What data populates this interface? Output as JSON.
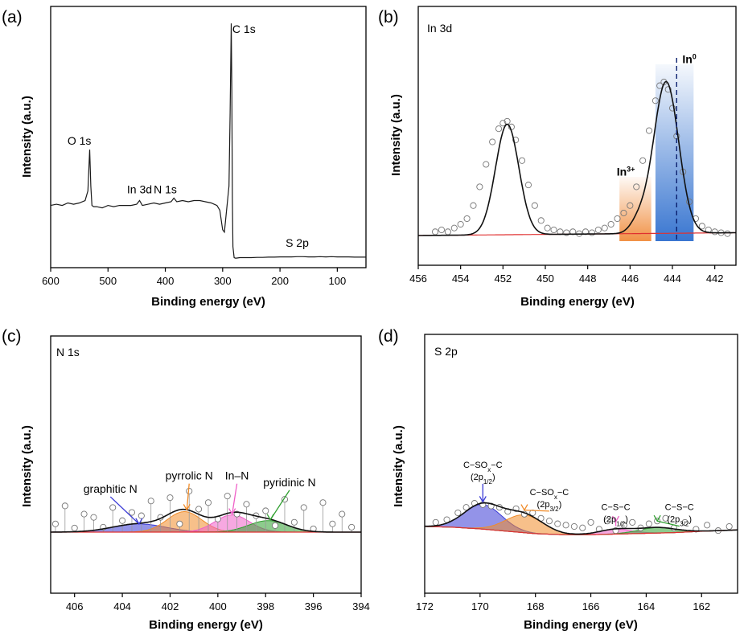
{
  "chart_data": [
    {
      "panel": "(a)",
      "type": "line",
      "title": "",
      "xlabel": "Binding energy (eV)",
      "ylabel": "Intensity (a.u.)",
      "xlim": [
        600,
        50
      ],
      "ylim": [
        0,
        100
      ],
      "x_reversed": true,
      "xticks": [
        600,
        500,
        400,
        300,
        200,
        100
      ],
      "yticks_shown": false,
      "series": [
        {
          "x": [
            600,
            590,
            580,
            570,
            560,
            550,
            540,
            535,
            532,
            530,
            528,
            525,
            520,
            510,
            500,
            490,
            480,
            470,
            460,
            450,
            445,
            440,
            430,
            420,
            410,
            400,
            390,
            385,
            380,
            370,
            360,
            350,
            340,
            330,
            320,
            310,
            305,
            300,
            297,
            294,
            291,
            289,
            287,
            285,
            284,
            283,
            282,
            280,
            278,
            276,
            270,
            260,
            250,
            240,
            230,
            220,
            210,
            200,
            190,
            180,
            170,
            160,
            150,
            140,
            130,
            120,
            110,
            100,
            90,
            80,
            70,
            60,
            50
          ],
          "y": [
            22,
            22.5,
            22,
            23,
            22.5,
            23,
            24,
            28,
            45,
            30,
            22,
            21.5,
            21.5,
            21,
            22,
            21.5,
            22,
            22,
            22,
            22.5,
            24,
            22,
            22.5,
            23,
            22.5,
            23,
            23.5,
            25,
            23.5,
            24,
            23.5,
            24,
            24,
            23.5,
            23,
            22,
            20,
            12,
            11,
            18,
            25,
            30,
            60,
            97,
            70,
            25,
            5,
            0.5,
            0.3,
            0.3,
            0.5,
            0.5,
            0.5,
            0.6,
            0.6,
            0.7,
            0.7,
            0.8,
            0.8,
            0.8,
            0.9,
            0.9,
            0.8,
            0.8,
            0.9,
            0.8,
            0.9,
            0.8,
            0.8,
            0.8,
            0.7,
            0.7,
            0.7
          ]
        }
      ],
      "annotations": [
        {
          "text": "C 1s",
          "x": 283,
          "y": 93
        },
        {
          "text": "O 1s",
          "x": 550,
          "y": 47
        },
        {
          "text": "In 3d",
          "x": 445,
          "y": 27
        },
        {
          "text": "N 1s",
          "x": 400,
          "y": 27
        },
        {
          "text": "S 2p",
          "x": 170,
          "y": 5
        }
      ]
    },
    {
      "panel": "(b)",
      "type": "line",
      "title": "In 3d",
      "xlabel": "Binding energy (eV)",
      "ylabel": "Intensity (a.u.)",
      "xlim": [
        456,
        441
      ],
      "ylim": [
        0,
        100
      ],
      "x_reversed": true,
      "xticks": [
        456,
        454,
        452,
        450,
        448,
        446,
        444,
        442
      ],
      "yticks_shown": false,
      "fit": {
        "baseline": {
          "x_start": 456,
          "y_start": 0,
          "x_end": 441,
          "y_end": 1.5
        },
        "peaks": [
          {
            "center": 451.8,
            "height": 59,
            "fwhm": 1.3
          },
          {
            "center": 444.3,
            "height": 81,
            "fwhm": 1.4
          },
          {
            "center": 445.6,
            "height": 6,
            "fwhm": 0.9
          }
        ]
      },
      "measured_points": {
        "x": [
          455.2,
          454.9,
          454.6,
          454.3,
          454.0,
          453.7,
          453.4,
          453.1,
          452.8,
          452.5,
          452.2,
          452.0,
          451.8,
          451.6,
          451.4,
          451.1,
          450.8,
          450.5,
          450.2,
          449.9,
          449.6,
          449.3,
          449.0,
          448.7,
          448.4,
          448.1,
          447.8,
          447.5,
          447.2,
          446.9,
          446.6,
          446.3,
          446.0,
          445.7,
          445.4,
          445.1,
          444.8,
          444.6,
          444.4,
          444.2,
          444.0,
          443.8,
          443.5,
          443.2,
          442.9,
          442.6,
          442.3,
          442.0,
          441.7,
          441.4
        ],
        "y": [
          2,
          3,
          2,
          4,
          6,
          9,
          16,
          26,
          38,
          50,
          57,
          60,
          61,
          58,
          51,
          40,
          27,
          16,
          8,
          4,
          3,
          2,
          1.5,
          2,
          1,
          2,
          1.5,
          3,
          4,
          6,
          9,
          12,
          16,
          26,
          40,
          56,
          72,
          80,
          82,
          78,
          68,
          53,
          34,
          18,
          9,
          5,
          3,
          2,
          1.5,
          1
        ]
      },
      "bands": [
        {
          "name": "In3+",
          "x_start": 446.5,
          "x_end": 445.0,
          "color": "#f08c3c"
        },
        {
          "name": "In0",
          "x_start": 444.8,
          "x_end": 443.0,
          "color": "#2f6fce"
        }
      ],
      "markers": [
        {
          "x": 443.8,
          "style": "dashed"
        }
      ],
      "annotations": [
        {
          "text": "In",
          "superscript": "3+",
          "x": 446.2,
          "y": 32
        },
        {
          "text": "In",
          "superscript": "0",
          "x": 443.2,
          "y": 92
        }
      ]
    },
    {
      "panel": "(c)",
      "type": "line",
      "title": "N 1s",
      "xlabel": "Binding energy (eV)",
      "ylabel": "Intensity (a.u.)",
      "xlim": [
        407,
        394
      ],
      "ylim": [
        0,
        100
      ],
      "x_reversed": true,
      "xticks": [
        406,
        404,
        402,
        400,
        398,
        396,
        394
      ],
      "yticks_shown": false,
      "fit": {
        "baseline": {
          "x_start": 407,
          "y_start": 0,
          "x_end": 394,
          "y_end": 0
        },
        "peaks": [
          {
            "name": "graphitic N",
            "center": 403.3,
            "height": 10,
            "fwhm": 2.6,
            "color": "#3b3bd6"
          },
          {
            "name": "pyrrolic N",
            "center": 401.4,
            "height": 25,
            "fwhm": 1.7,
            "color": "#f08c2a"
          },
          {
            "name": "In–N",
            "center": 399.4,
            "height": 21,
            "fwhm": 1.7,
            "color": "#f060c8"
          },
          {
            "name": "pyridinic N",
            "center": 397.9,
            "height": 14,
            "fwhm": 1.9,
            "color": "#30a030"
          }
        ]
      },
      "measured_points": {
        "x": [
          406.8,
          406.4,
          406.0,
          405.6,
          405.2,
          404.8,
          404.4,
          404.0,
          403.6,
          403.2,
          402.8,
          402.4,
          402.0,
          401.6,
          401.2,
          400.8,
          400.4,
          400.0,
          399.6,
          399.2,
          398.8,
          398.4,
          398.0,
          397.6,
          397.2,
          396.8,
          396.4,
          396.0,
          395.6,
          395.2,
          394.8,
          394.4
        ],
        "y": [
          10,
          32,
          5,
          22,
          18,
          6,
          30,
          14,
          24,
          20,
          38,
          18,
          42,
          10,
          50,
          28,
          36,
          16,
          44,
          22,
          34,
          20,
          26,
          8,
          40,
          12,
          30,
          4,
          36,
          10,
          22,
          6
        ]
      },
      "annotations": [
        {
          "text": "graphitic N",
          "x": 404.5,
          "y": 48,
          "color": "#3b3bd6",
          "target_x": 403.3,
          "target_y": 10
        },
        {
          "text": "pyrrolic N",
          "x": 401.2,
          "y": 64,
          "color": "#f08c2a",
          "target_x": 401.3,
          "target_y": 27
        },
        {
          "text": "In–N",
          "x": 399.2,
          "y": 64,
          "color": "#f060c8",
          "target_x": 399.4,
          "target_y": 22
        },
        {
          "text": "pyridinic N",
          "x": 397.0,
          "y": 56,
          "color": "#30a030",
          "target_x": 397.8,
          "target_y": 15
        }
      ]
    },
    {
      "panel": "(d)",
      "type": "line",
      "title": "S 2p",
      "xlabel": "Binding energy (eV)",
      "ylabel": "Intensity (a.u.)",
      "xlim": [
        172,
        160.7
      ],
      "ylim": [
        0,
        100
      ],
      "x_reversed": true,
      "xticks": [
        172,
        170,
        168,
        166,
        164,
        162
      ],
      "yticks_shown": false,
      "fit": {
        "baseline": {
          "points_x": [
            172,
            171,
            170,
            169,
            168,
            167,
            166,
            165,
            164,
            163,
            162,
            161,
            160.7
          ],
          "points_y": [
            0,
            -1,
            -3.5,
            -7,
            -10.5,
            -12,
            -12,
            -11,
            -10,
            -9,
            -7,
            -5.5,
            -5
          ]
        },
        "peaks": [
          {
            "name": "C–SOx–C (2p1/2)",
            "center": 169.9,
            "height": 36,
            "fwhm": 1.6,
            "color": "#3b3bd6"
          },
          {
            "name": "C–SOx–C (2p3/2)",
            "center": 168.4,
            "height": 26,
            "fwhm": 1.6,
            "color": "#f08c2a"
          },
          {
            "name": "C–S–C (2p1/2)",
            "center": 165.1,
            "height": 7,
            "fwhm": 1.4,
            "color": "#f060c8"
          },
          {
            "name": "C–S–C (2p3/2)",
            "center": 163.6,
            "height": 8,
            "fwhm": 1.6,
            "color": "#30a030"
          }
        ]
      },
      "measured_points": {
        "x": [
          171.6,
          171.2,
          170.8,
          170.5,
          170.2,
          169.9,
          169.6,
          169.3,
          169.0,
          168.7,
          168.4,
          168.1,
          167.8,
          167.5,
          167.2,
          166.9,
          166.6,
          166.3,
          166.0,
          165.7,
          165.4,
          165.1,
          164.8,
          164.5,
          164.2,
          163.9,
          163.6,
          163.3,
          163.0,
          162.6,
          162.2,
          161.8,
          161.4,
          161.0
        ],
        "y": [
          6,
          10,
          20,
          28,
          34,
          32,
          30,
          28,
          22,
          26,
          18,
          20,
          12,
          8,
          4,
          2,
          0,
          -2,
          6,
          -4,
          8,
          -6,
          2,
          6,
          -2,
          4,
          8,
          12,
          -2,
          6,
          -4,
          2,
          -6,
          0
        ]
      },
      "annotations": [
        {
          "text": "C−SO",
          "sub": "x",
          "suffix": "−C",
          "line2": "(2p",
          "line2_sub": "1/2",
          "line2_suffix": ")",
          "x": 169.9,
          "y": 86,
          "color": "#3b3bd6",
          "target_x": 169.9,
          "target_y": 36
        },
        {
          "text": "C−SO",
          "sub": "x",
          "suffix": "−C",
          "line2": "(2p",
          "line2_sub": "3/2",
          "line2_suffix": ")",
          "x": 167.5,
          "y": 46,
          "color": "#f08c2a",
          "target_x": 168.4,
          "target_y": 24
        },
        {
          "text": "C−S−C",
          "line2": "(2p",
          "line2_sub": "1/2",
          "line2_suffix": ")",
          "x": 165.1,
          "y": 24,
          "color": "#f060c8",
          "target_x": 165.1,
          "target_y": 7
        },
        {
          "text": "C−S−C",
          "line2": "(2p",
          "line2_sub": "3/2",
          "line2_suffix": ")",
          "x": 162.8,
          "y": 24,
          "color": "#30a030",
          "target_x": 163.6,
          "target_y": 8
        }
      ]
    }
  ]
}
